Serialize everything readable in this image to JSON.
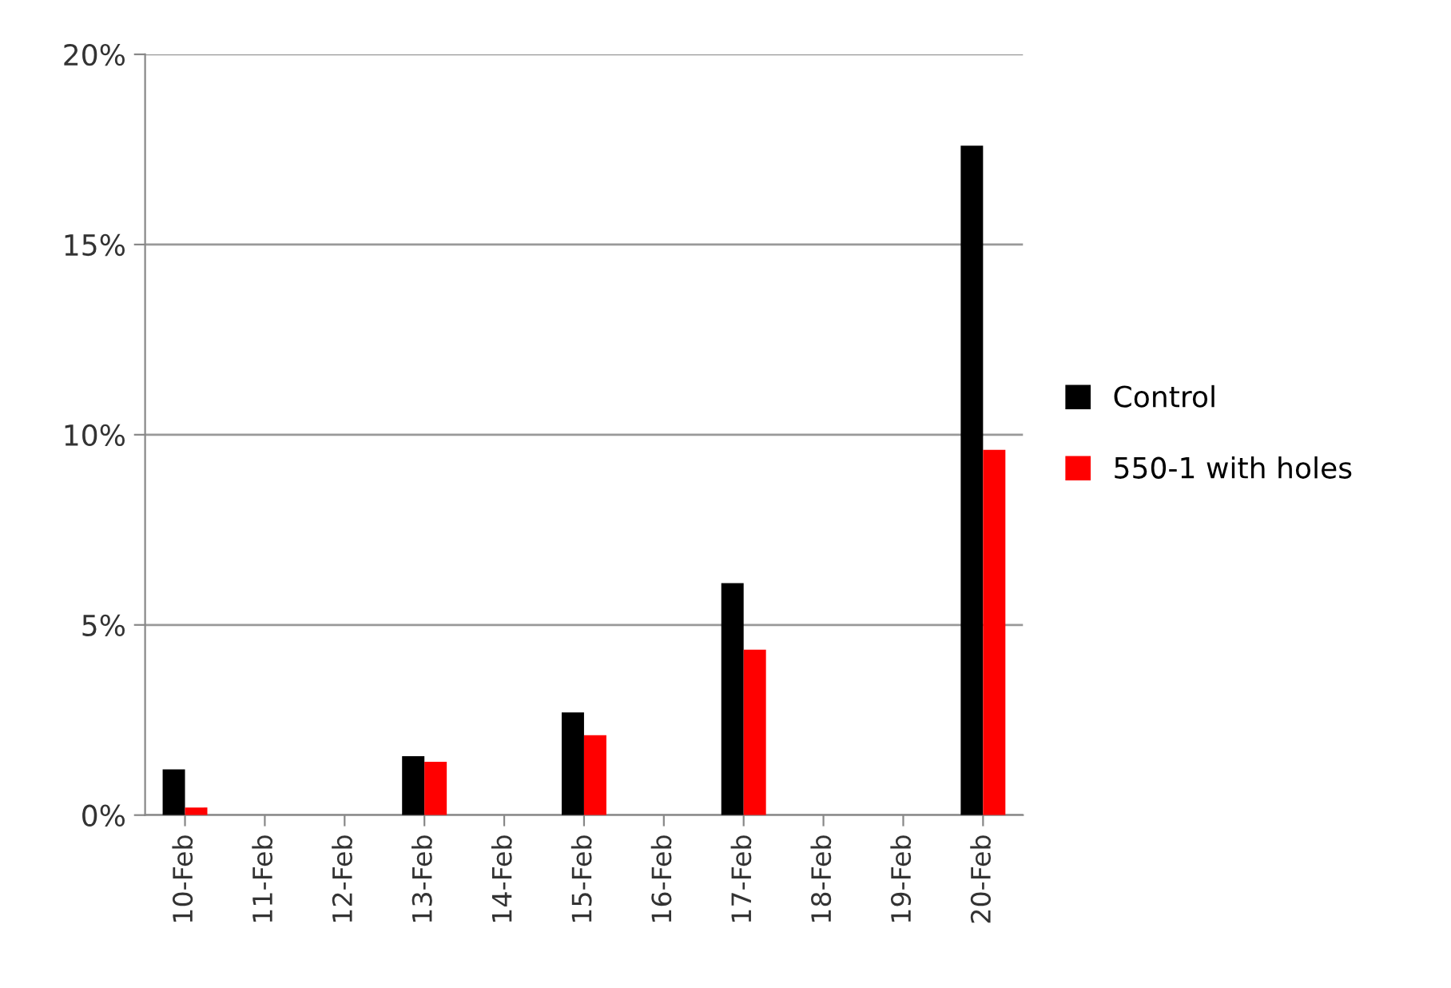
{
  "chart_data": {
    "type": "bar",
    "categories": [
      "10-Feb",
      "11-Feb",
      "12-Feb",
      "13-Feb",
      "14-Feb",
      "15-Feb",
      "16-Feb",
      "17-Feb",
      "18-Feb",
      "19-Feb",
      "20-Feb"
    ],
    "series": [
      {
        "name": "Control",
        "color": "#000000",
        "values": [
          1.2,
          null,
          null,
          1.55,
          null,
          2.7,
          null,
          6.1,
          null,
          null,
          17.6
        ]
      },
      {
        "name": "550-1 with holes",
        "color": "#ff0000",
        "values": [
          0.2,
          null,
          null,
          1.4,
          null,
          2.1,
          null,
          4.35,
          null,
          null,
          9.6
        ]
      }
    ],
    "ylim": [
      0,
      20
    ],
    "yticks": [
      {
        "value": 0,
        "label": "0%"
      },
      {
        "value": 5,
        "label": "5%"
      },
      {
        "value": 10,
        "label": "10%"
      },
      {
        "value": 15,
        "label": "15%"
      },
      {
        "value": 20,
        "label": "20%"
      }
    ],
    "grid": "y",
    "legend": "right"
  }
}
